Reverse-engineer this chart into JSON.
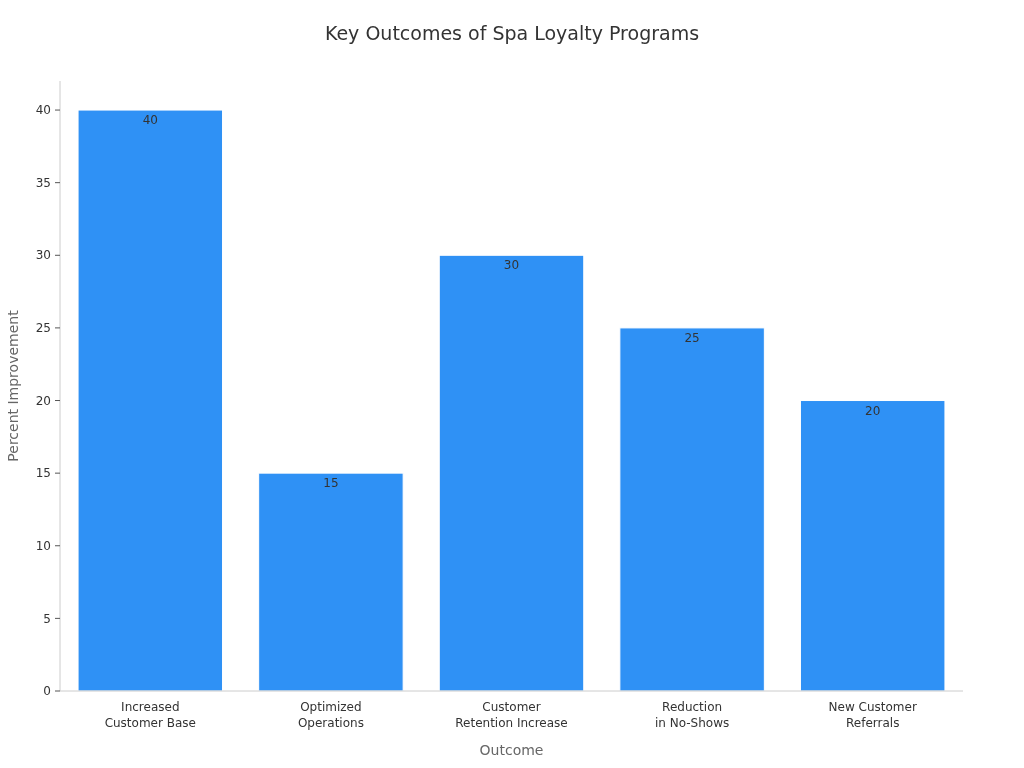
{
  "chart_data": {
    "type": "bar",
    "title": "Key Outcomes of Spa Loyalty Programs",
    "xlabel": "Outcome",
    "ylabel": "Percent Improvement",
    "categories": [
      "Increased\nCustomer Base",
      "Optimized\nOperations",
      "Customer\nRetention Increase",
      "Reduction\nin No-Shows",
      "New Customer\nReferrals"
    ],
    "values": [
      40,
      15,
      30,
      25,
      20
    ],
    "color": "#2f91f5",
    "ylim": [
      0,
      42
    ],
    "yticks": [
      0,
      5,
      10,
      15,
      20,
      25,
      30,
      35,
      40
    ],
    "data_labels": true
  }
}
